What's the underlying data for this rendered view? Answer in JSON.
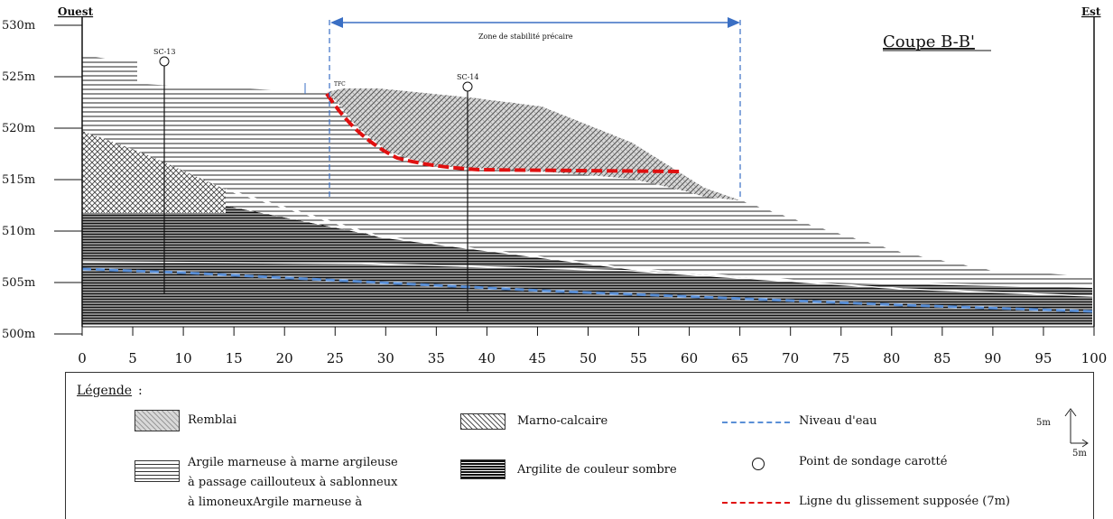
{
  "title": "Coupe B-B'",
  "west_label": "Ouest",
  "east_label": "Est",
  "zone_label": "Zone de stabilité précaire",
  "y_labels": [
    "530m",
    "525m",
    "520m",
    "515m",
    "510m",
    "505m",
    "500m"
  ],
  "x_labels": [
    "0",
    "5",
    "10",
    "15",
    "20",
    "25",
    "30",
    "35",
    "40",
    "45",
    "50",
    "55",
    "60",
    "65",
    "70",
    "75",
    "80",
    "85",
    "90",
    "95",
    "100"
  ],
  "boreholes": [
    {
      "label": "SC-13"
    },
    {
      "label": "SC-14"
    }
  ],
  "small_label": "TFC",
  "legend": {
    "title": "Légende",
    "title_suffix": ":",
    "remblai": "Remblai",
    "argile_lines": [
      "Argile marneuse à marne argileuse",
      "à passage caillouteux à sablonneux",
      "à limoneuxArgile  marneuse à"
    ],
    "marno": "Marno-calcaire",
    "argilite": "Argilite de couleur sombre",
    "niveau": "Niveau d'eau",
    "point": "Point de sondage carotté",
    "ligne": "Ligne du glissement supposée (7m)",
    "scale_v": "5m",
    "scale_h": "5m"
  },
  "colors": {
    "water": "#5a8fd6",
    "slide": "#e01010",
    "zone": "#3a6fc4"
  }
}
